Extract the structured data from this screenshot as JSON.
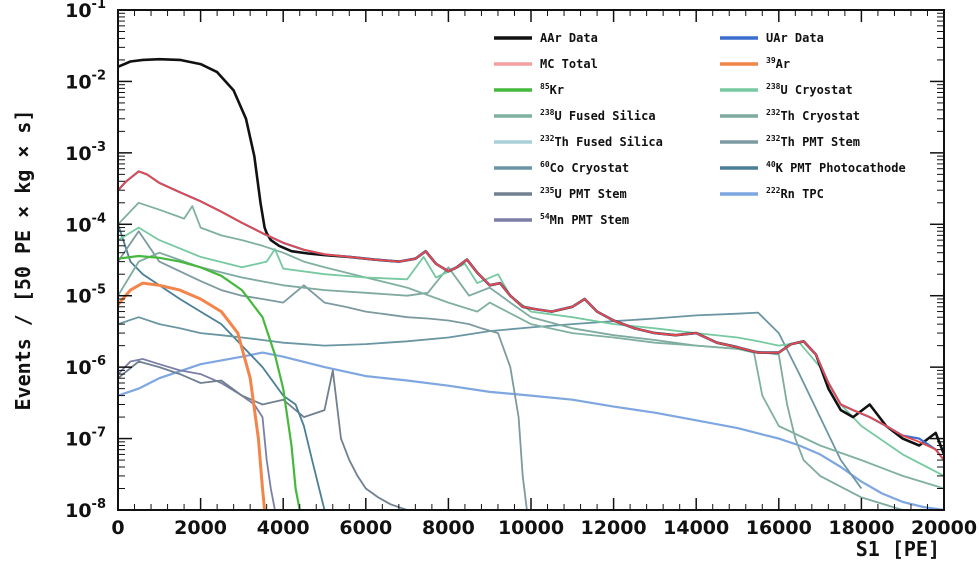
{
  "chart_data": {
    "type": "line",
    "xlabel": "S1 [PE]",
    "ylabel": "Events / [50 PE × kg × s]",
    "xlim": [
      0,
      20000
    ],
    "ylim": [
      1e-08,
      0.1
    ],
    "yscale": "log",
    "x_ticks": [
      "0",
      "2000",
      "4000",
      "6000",
      "8000",
      "10000",
      "12000",
      "14000",
      "16000",
      "18000",
      "20000"
    ],
    "y_ticks": [
      {
        "base": "10",
        "exp": "-8",
        "value": 1e-08
      },
      {
        "base": "10",
        "exp": "-7",
        "value": 1e-07
      },
      {
        "base": "10",
        "exp": "-6",
        "value": 1e-06
      },
      {
        "base": "10",
        "exp": "-5",
        "value": 1e-05
      },
      {
        "base": "10",
        "exp": "-4",
        "value": 0.0001
      },
      {
        "base": "10",
        "exp": "-3",
        "value": 0.001
      },
      {
        "base": "10",
        "exp": "-2",
        "value": 0.01
      },
      {
        "base": "10",
        "exp": "-1",
        "value": 0.1
      }
    ],
    "legend_position": "top-right",
    "legend": [
      {
        "sup": "",
        "text": "AAr Data",
        "color": "#111111"
      },
      {
        "sup": "",
        "text": "UAr Data",
        "color": "#3a6fcf"
      },
      {
        "sup": "",
        "text": "MC Total",
        "color": "#f4a0a0"
      },
      {
        "sup": "39",
        "text": "Ar",
        "color": "#f3844a"
      },
      {
        "sup": "85",
        "text": "Kr",
        "color": "#45b83d"
      },
      {
        "sup": "238",
        "text": "U Cryostat",
        "color": "#76c9a0"
      },
      {
        "sup": "238",
        "text": "U Fused Silica",
        "color": "#7fb0a0"
      },
      {
        "sup": "232",
        "text": "Th Cryostat",
        "color": "#7faaa0"
      },
      {
        "sup": "232",
        "text": "Th Fused Silica",
        "color": "#a8d0d8"
      },
      {
        "sup": "232",
        "text": "Th PMT Stem",
        "color": "#7c9aa0"
      },
      {
        "sup": "60",
        "text": "Co Cryostat",
        "color": "#6a96a4"
      },
      {
        "sup": "40",
        "text": "K PMT Photocathode",
        "color": "#4a7f96"
      },
      {
        "sup": "235",
        "text": "U PMT Stem",
        "color": "#708090"
      },
      {
        "sup": "222",
        "text": "Rn TPC",
        "color": "#7ea6e0"
      },
      {
        "sup": "54",
        "text": "Mn PMT Stem",
        "color": "#7b7fa8"
      }
    ],
    "series": [
      {
        "name": "AAr Data",
        "color": "#111111",
        "width": 2.6,
        "x": [
          0,
          300,
          600,
          1000,
          1500,
          2000,
          2400,
          2800,
          3100,
          3300,
          3450,
          3550,
          3600,
          3700,
          3900,
          4200,
          4600,
          5000,
          5600,
          6200,
          6800,
          7200,
          7450,
          7700,
          8000,
          8200,
          8450,
          8700,
          9000,
          9250,
          9500,
          9800,
          10100,
          10500,
          11000,
          11300,
          11600,
          12000,
          12500,
          13000,
          13500,
          14000,
          14500,
          15000,
          15500,
          16000,
          16300,
          16600,
          16900,
          17200,
          17500,
          17800,
          18200,
          18600,
          19000,
          19400,
          19800,
          20000
        ],
        "y": [
          0.016,
          0.019,
          0.02,
          0.0205,
          0.02,
          0.0175,
          0.0135,
          0.0075,
          0.003,
          0.0009,
          0.0002,
          9e-05,
          7.5e-05,
          6e-05,
          5e-05,
          4.2e-05,
          3.9e-05,
          3.7e-05,
          3.5e-05,
          3.2e-05,
          3e-05,
          3.3e-05,
          4.2e-05,
          2.8e-05,
          2.2e-05,
          2.5e-05,
          3.2e-05,
          2.1e-05,
          1.4e-05,
          1.5e-05,
          1e-05,
          7e-06,
          6.5e-06,
          6e-06,
          7e-06,
          9e-06,
          6e-06,
          4.5e-06,
          3.5e-06,
          3e-06,
          2.8e-06,
          3e-06,
          2.2e-06,
          1.9e-06,
          1.6e-06,
          1.6e-06,
          2.1e-06,
          2.3e-06,
          1.5e-06,
          5e-07,
          2.5e-07,
          2e-07,
          3e-07,
          1.5e-07,
          1e-07,
          8e-08,
          1.2e-07,
          6e-08
        ]
      },
      {
        "name": "UAr Data",
        "color": "#3a6fcf",
        "width": 2.2,
        "x": [
          0,
          200,
          500,
          700,
          1000,
          1500,
          2000,
          2500,
          3000,
          3500,
          4000,
          4500,
          5000,
          5600,
          6200,
          6800,
          7200,
          7450,
          7700,
          8000,
          8200,
          8450,
          8700,
          9000,
          9250,
          9500,
          9800,
          10100,
          10500,
          11000,
          11300,
          11600,
          12000,
          12500,
          13000,
          13500,
          14000,
          14500,
          15000,
          15500,
          16000,
          16300,
          16600,
          16900,
          17200,
          17500,
          17800,
          18200,
          18600,
          19000,
          19400,
          19800,
          20000
        ],
        "y": [
          0.0003,
          0.0004,
          0.00055,
          0.0005,
          0.00038,
          0.00028,
          0.00021,
          0.00015,
          0.000105,
          7.5e-05,
          5.5e-05,
          4.4e-05,
          3.8e-05,
          3.5e-05,
          3.2e-05,
          3e-05,
          3.3e-05,
          4.2e-05,
          2.8e-05,
          2.2e-05,
          2.5e-05,
          3.2e-05,
          2.1e-05,
          1.4e-05,
          1.5e-05,
          1e-05,
          7e-06,
          6.5e-06,
          6e-06,
          7e-06,
          9e-06,
          6e-06,
          4.5e-06,
          3.5e-06,
          3e-06,
          2.8e-06,
          3e-06,
          2.2e-06,
          1.9e-06,
          1.6e-06,
          1.6e-06,
          2.1e-06,
          2.3e-06,
          1.5e-06,
          6e-07,
          3e-07,
          2.5e-07,
          2e-07,
          1.5e-07,
          1.1e-07,
          1e-07,
          7e-08,
          5e-08
        ]
      },
      {
        "name": "MC Total",
        "color": "#e84848",
        "width": 1.8,
        "x": [
          0,
          200,
          500,
          700,
          1000,
          1500,
          2000,
          2500,
          3000,
          3500,
          4000,
          4500,
          5000,
          5600,
          6200,
          6800,
          7200,
          7450,
          7700,
          8000,
          8200,
          8450,
          8700,
          9000,
          9250,
          9500,
          9800,
          10100,
          10500,
          11000,
          11300,
          11600,
          12000,
          12500,
          13000,
          13500,
          14000,
          14500,
          15000,
          15500,
          16000,
          16300,
          16600,
          16900,
          17200,
          17500,
          17800,
          18200,
          18600,
          19000,
          19400,
          19800,
          20000
        ],
        "y": [
          0.0003,
          0.0004,
          0.00055,
          0.0005,
          0.00038,
          0.00028,
          0.00021,
          0.00015,
          0.000105,
          7.5e-05,
          5.5e-05,
          4.4e-05,
          3.8e-05,
          3.5e-05,
          3.2e-05,
          3e-05,
          3.3e-05,
          4.2e-05,
          2.8e-05,
          2.2e-05,
          2.5e-05,
          3.2e-05,
          2.1e-05,
          1.4e-05,
          1.5e-05,
          1e-05,
          7e-06,
          6.5e-06,
          6e-06,
          7e-06,
          9e-06,
          6e-06,
          4.5e-06,
          3.5e-06,
          3e-06,
          2.8e-06,
          3e-06,
          2.2e-06,
          1.9e-06,
          1.6e-06,
          1.6e-06,
          2.1e-06,
          2.3e-06,
          1.5e-06,
          6e-07,
          3e-07,
          2.5e-07,
          2e-07,
          1.5e-07,
          1.1e-07,
          9e-08,
          7e-08,
          5e-08
        ]
      },
      {
        "name": "39Ar",
        "color": "#f3844a",
        "width": 3,
        "x": [
          0,
          300,
          600,
          1000,
          1500,
          2000,
          2500,
          2900,
          3200,
          3400,
          3500,
          3550
        ],
        "y": [
          7.5e-06,
          1.2e-05,
          1.5e-05,
          1.4e-05,
          1.2e-05,
          9e-06,
          6e-06,
          3e-06,
          7e-07,
          1e-07,
          2e-08,
          1e-08
        ]
      },
      {
        "name": "85Kr",
        "color": "#45b83d",
        "width": 2.2,
        "x": [
          0,
          500,
          1000,
          1500,
          2000,
          2500,
          3000,
          3500,
          3800,
          4000,
          4200,
          4300,
          4400
        ],
        "y": [
          3.3e-05,
          3.6e-05,
          3.4e-05,
          3e-05,
          2.5e-05,
          1.9e-05,
          1.2e-05,
          5e-06,
          1.5e-06,
          5e-07,
          8e-08,
          2e-08,
          1e-08
        ]
      },
      {
        "name": "238U Cryostat",
        "color": "#76c9a0",
        "width": 1.8,
        "x": [
          0,
          500,
          1000,
          2000,
          3000,
          3600,
          3800,
          4000,
          5000,
          6000,
          7000,
          7400,
          7700,
          8400,
          8700,
          9200,
          9500,
          10000,
          11000,
          12000,
          13000,
          14000,
          15000,
          15500,
          16000,
          16500,
          17000,
          17500,
          18000,
          19000,
          20000
        ],
        "y": [
          6e-05,
          9e-05,
          6e-05,
          3.5e-05,
          2.5e-05,
          3e-05,
          4.5e-05,
          2.4e-05,
          2e-05,
          1.8e-05,
          1.7e-05,
          3.5e-05,
          1.8e-05,
          2.8e-05,
          1.5e-05,
          2e-05,
          1e-05,
          6e-06,
          5e-06,
          4e-06,
          3.5e-06,
          3e-06,
          2.6e-06,
          2.3e-06,
          2e-06,
          2.2e-06,
          1e-06,
          3e-07,
          1.5e-07,
          6e-08,
          3e-08
        ]
      },
      {
        "name": "238U Fused Silica",
        "color": "#7fb0a0",
        "width": 1.8,
        "x": [
          0,
          500,
          1000,
          1600,
          1800,
          2000,
          2500,
          3000,
          3500,
          4000,
          4500,
          5000,
          6000,
          7000,
          8000,
          8700,
          9000,
          10000,
          11000,
          12000,
          13000,
          14000,
          15000,
          15400,
          15600,
          16000,
          17000,
          18000,
          19000,
          20000
        ],
        "y": [
          0.0001,
          0.0002,
          0.00016,
          0.00012,
          0.00018,
          9e-05,
          7e-05,
          6e-05,
          5e-05,
          4e-05,
          3e-05,
          2.5e-05,
          1.8e-05,
          1.3e-05,
          8e-06,
          6e-06,
          8e-06,
          4e-06,
          3e-06,
          2.6e-06,
          2.2e-06,
          2e-06,
          1.8e-06,
          1.6e-06,
          4e-07,
          1.5e-07,
          8e-08,
          5e-08,
          3e-08,
          2e-08
        ]
      },
      {
        "name": "232Th Cryostat",
        "color": "#7faaa0",
        "width": 1.8,
        "x": [
          0,
          500,
          1000,
          2000,
          3000,
          4000,
          5000,
          6000,
          7000,
          7500,
          8000,
          8500,
          9000,
          9500,
          10000,
          11000,
          12000,
          13000,
          14000,
          15000,
          16000,
          16200,
          16400,
          16600,
          17000,
          18000,
          19000,
          20000
        ],
        "y": [
          1e-05,
          3e-05,
          4e-05,
          2.5e-05,
          1.8e-05,
          1.4e-05,
          1.2e-05,
          1.1e-05,
          1e-05,
          1.1e-05,
          2.5e-05,
          1e-05,
          1.3e-05,
          8e-06,
          5e-06,
          3.5e-06,
          2.8e-06,
          2.4e-06,
          2e-06,
          1.8e-06,
          1.5e-06,
          3e-07,
          1e-07,
          5e-08,
          3e-08,
          1.5e-08,
          1e-08,
          1e-08
        ]
      },
      {
        "name": "232Th Fused Silica",
        "color": "#a8d0d8",
        "width": 1.6,
        "x": [
          0,
          2000,
          4000,
          6000,
          8000,
          10000,
          12000,
          14000,
          16000,
          18000,
          20000
        ],
        "y": [
          1e-08,
          1e-08,
          1e-08,
          1e-08,
          1e-08,
          1e-08,
          1e-08,
          1e-08,
          1e-08,
          1e-08,
          1e-08
        ]
      },
      {
        "name": "232Th PMT Stem",
        "color": "#7c9aa0",
        "width": 1.8,
        "x": [
          0,
          500,
          1000,
          1500,
          2000,
          2500,
          3000,
          3500,
          4000,
          4500,
          5000,
          5500,
          6000,
          6500,
          7000,
          7500,
          8000,
          8500,
          8800,
          9200,
          9500,
          9700,
          9800,
          9900
        ],
        "y": [
          3e-05,
          8e-05,
          3e-05,
          2.2e-05,
          1.6e-05,
          1.2e-05,
          1e-05,
          9e-06,
          8e-06,
          1.4e-05,
          8e-06,
          7e-06,
          6e-06,
          5.5e-06,
          5e-06,
          4.8e-06,
          4.5e-06,
          4e-06,
          3.5e-06,
          3e-06,
          1e-06,
          2e-07,
          3e-08,
          1e-08
        ]
      },
      {
        "name": "60Co Cryostat",
        "color": "#6a96a4",
        "width": 1.8,
        "x": [
          0,
          500,
          1000,
          1500,
          2000,
          2500,
          3000,
          3500,
          4000,
          5000,
          6000,
          7000,
          8000,
          9000,
          10000,
          11000,
          12000,
          13000,
          14000,
          15000,
          15500,
          16000,
          16500,
          17000,
          17500,
          18000
        ],
        "y": [
          4e-06,
          5e-06,
          4e-06,
          3.5e-06,
          3e-06,
          2.8e-06,
          2.6e-06,
          2.4e-06,
          2.2e-06,
          2e-06,
          2.1e-06,
          2.3e-06,
          2.6e-06,
          3.2e-06,
          3.6e-06,
          4e-06,
          4.4e-06,
          4.8e-06,
          5.3e-06,
          5.6e-06,
          5.8e-06,
          3e-06,
          8e-07,
          2e-07,
          5e-08,
          2e-08
        ]
      },
      {
        "name": "40K PMT Photocathode",
        "color": "#4a7f96",
        "width": 1.8,
        "x": [
          0,
          300,
          600,
          1000,
          1500,
          2000,
          2500,
          3000,
          3500,
          4000,
          4300,
          4500,
          4700,
          5000
        ],
        "y": [
          0.0001,
          3e-05,
          2e-05,
          1.4e-05,
          9e-06,
          6e-06,
          4e-06,
          2e-06,
          1e-06,
          4e-07,
          3e-07,
          1.5e-07,
          5e-08,
          1e-08
        ]
      },
      {
        "name": "235U PMT Stem",
        "color": "#708090",
        "width": 1.8,
        "x": [
          0,
          500,
          1000,
          1500,
          2000,
          2500,
          3000,
          3500,
          4000,
          4500,
          5000,
          5200,
          5400,
          5600,
          5800,
          6000,
          6300,
          6600,
          7000
        ],
        "y": [
          7e-07,
          1.2e-06,
          1e-06,
          8e-07,
          6e-07,
          6.5e-07,
          4e-07,
          3e-07,
          3.5e-07,
          2e-07,
          2.5e-07,
          9e-07,
          1e-07,
          5e-08,
          3e-08,
          2e-08,
          1.5e-08,
          1.2e-08,
          1e-08
        ]
      },
      {
        "name": "222Rn TPC",
        "color": "#7ea6e0",
        "width": 2.2,
        "x": [
          0,
          500,
          1000,
          2000,
          3000,
          3500,
          4000,
          5000,
          6000,
          7000,
          8000,
          9000,
          10000,
          11000,
          12000,
          13000,
          14000,
          15000,
          16000,
          16500,
          17000,
          17500,
          18000,
          18500,
          19000,
          19500,
          20000
        ],
        "y": [
          4e-07,
          5e-07,
          7e-07,
          1.1e-06,
          1.4e-06,
          1.6e-06,
          1.4e-06,
          1e-06,
          7.5e-07,
          6.5e-07,
          5.5e-07,
          4.5e-07,
          4e-07,
          3.5e-07,
          2.8e-07,
          2.3e-07,
          1.8e-07,
          1.4e-07,
          1e-07,
          8e-08,
          6e-08,
          4e-08,
          2.5e-08,
          1.7e-08,
          1.3e-08,
          1.1e-08,
          1e-08
        ]
      },
      {
        "name": "54Mn PMT Stem",
        "color": "#7b7fa8",
        "width": 1.8,
        "x": [
          0,
          300,
          600,
          1000,
          1500,
          2000,
          2500,
          3000,
          3300,
          3500,
          3600,
          3700,
          3800
        ],
        "y": [
          8e-07,
          1.2e-06,
          1.3e-06,
          1.1e-06,
          9e-07,
          8e-07,
          6e-07,
          4e-07,
          3e-07,
          2e-07,
          5e-08,
          2e-08,
          1e-08
        ]
      }
    ]
  }
}
